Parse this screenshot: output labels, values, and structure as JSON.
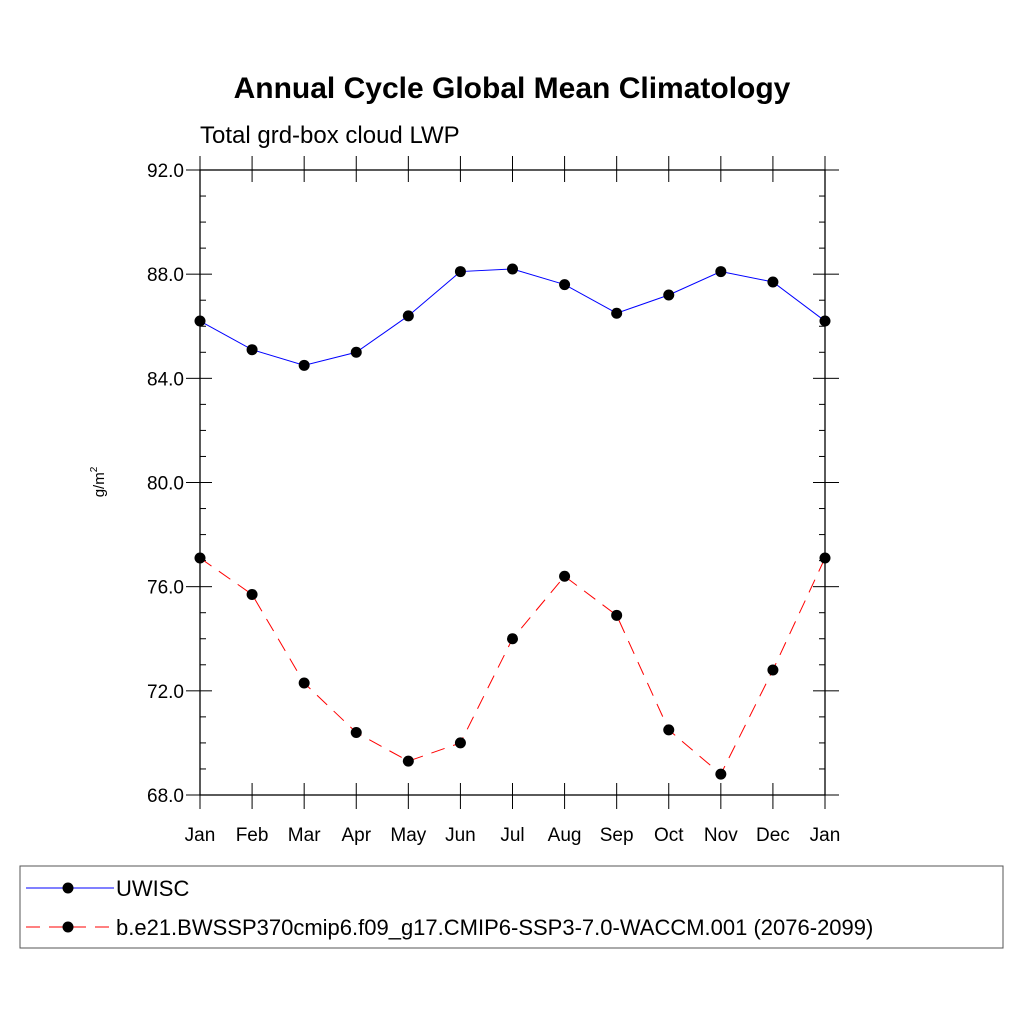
{
  "chart_data": {
    "type": "line",
    "title": "Annual Cycle Global Mean Climatology",
    "subtitle": "Total grd-box cloud LWP",
    "ylabel": "g/m",
    "ylabel_superscript": "2",
    "xlabel": "",
    "categories": [
      "Jan",
      "Feb",
      "Mar",
      "Apr",
      "May",
      "Jun",
      "Jul",
      "Aug",
      "Sep",
      "Oct",
      "Nov",
      "Dec",
      "Jan"
    ],
    "ylim": [
      68.0,
      92.0
    ],
    "yticks": [
      "68.0",
      "72.0",
      "76.0",
      "80.0",
      "84.0",
      "88.0",
      "92.0"
    ],
    "grid": false,
    "legend_position": "bottom",
    "series": [
      {
        "name": "UWISC",
        "color": "#0000ff",
        "dash": "solid",
        "values": [
          86.2,
          85.1,
          84.5,
          85.0,
          86.4,
          88.1,
          88.2,
          87.6,
          86.5,
          87.2,
          88.1,
          87.7,
          86.2
        ]
      },
      {
        "name": "b.e21.BWSSP370cmip6.f09_g17.CMIP6-SSP3-7.0-WACCM.001 (2076-2099)",
        "color": "#ff0000",
        "dash": "dashed",
        "values": [
          77.1,
          75.7,
          72.3,
          70.4,
          69.3,
          70.0,
          74.0,
          76.4,
          74.9,
          70.5,
          68.8,
          72.8,
          77.1
        ]
      }
    ]
  }
}
